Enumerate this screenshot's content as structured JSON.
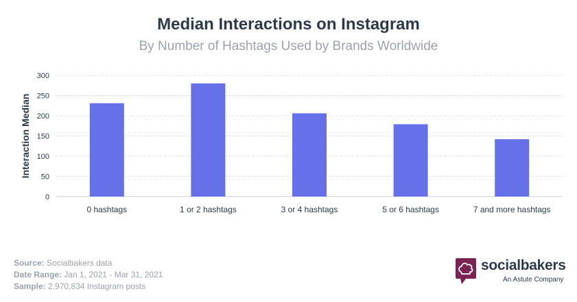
{
  "header": {
    "title": "Median Interactions on Instagram",
    "subtitle": "By Number of Hashtags Used by Brands Worldwide"
  },
  "chart_data": {
    "type": "bar",
    "categories": [
      "0 hashtags",
      "1 or 2 hashtags",
      "3 or 4 hashtags",
      "5 or 6 hashtags",
      "7 and more hashtags"
    ],
    "values": [
      231,
      280,
      206,
      179,
      142
    ],
    "ylabel": "Interaction Median",
    "ylim": [
      0,
      300
    ],
    "yticks": [
      0,
      50,
      100,
      150,
      200,
      250,
      300
    ],
    "grid": true,
    "bar_color": "#6670e8"
  },
  "footer": {
    "source_label": "Source:",
    "source_value": "Socialbakers data",
    "date_label": "Date Range:",
    "date_value": "Jan 1, 2021 - Mar 31, 2021",
    "sample_label": "Sample:",
    "sample_value": "2,970,834 Instagram posts"
  },
  "brand": {
    "name": "socialbakers",
    "tagline": "An Astute Company",
    "color": "#7b2453"
  }
}
